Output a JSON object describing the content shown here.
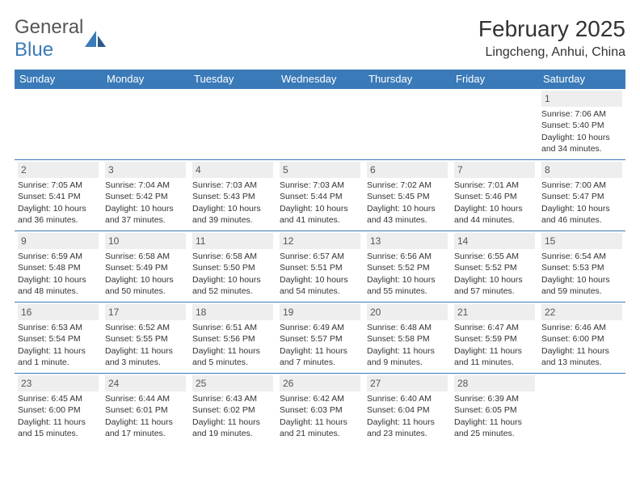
{
  "logo": {
    "word1": "General",
    "word2": "Blue"
  },
  "colors": {
    "header_bg": "#3a7ab8",
    "header_text": "#ffffff",
    "daynum_bg": "#eeeeee",
    "border": "#3a7ab8",
    "body_text": "#333333",
    "logo_gray": "#555555",
    "logo_blue": "#3a7ab8",
    "background": "#ffffff"
  },
  "typography": {
    "month_title_size": 28,
    "location_size": 16,
    "header_cell_size": 13,
    "daynum_size": 12,
    "body_size": 10.5
  },
  "title": "February 2025",
  "location": "Lingcheng, Anhui, China",
  "weekdays": [
    "Sunday",
    "Monday",
    "Tuesday",
    "Wednesday",
    "Thursday",
    "Friday",
    "Saturday"
  ],
  "startOffset": 6,
  "days": [
    {
      "n": "1",
      "sunrise": "Sunrise: 7:06 AM",
      "sunset": "Sunset: 5:40 PM",
      "daylight": "Daylight: 10 hours and 34 minutes."
    },
    {
      "n": "2",
      "sunrise": "Sunrise: 7:05 AM",
      "sunset": "Sunset: 5:41 PM",
      "daylight": "Daylight: 10 hours and 36 minutes."
    },
    {
      "n": "3",
      "sunrise": "Sunrise: 7:04 AM",
      "sunset": "Sunset: 5:42 PM",
      "daylight": "Daylight: 10 hours and 37 minutes."
    },
    {
      "n": "4",
      "sunrise": "Sunrise: 7:03 AM",
      "sunset": "Sunset: 5:43 PM",
      "daylight": "Daylight: 10 hours and 39 minutes."
    },
    {
      "n": "5",
      "sunrise": "Sunrise: 7:03 AM",
      "sunset": "Sunset: 5:44 PM",
      "daylight": "Daylight: 10 hours and 41 minutes."
    },
    {
      "n": "6",
      "sunrise": "Sunrise: 7:02 AM",
      "sunset": "Sunset: 5:45 PM",
      "daylight": "Daylight: 10 hours and 43 minutes."
    },
    {
      "n": "7",
      "sunrise": "Sunrise: 7:01 AM",
      "sunset": "Sunset: 5:46 PM",
      "daylight": "Daylight: 10 hours and 44 minutes."
    },
    {
      "n": "8",
      "sunrise": "Sunrise: 7:00 AM",
      "sunset": "Sunset: 5:47 PM",
      "daylight": "Daylight: 10 hours and 46 minutes."
    },
    {
      "n": "9",
      "sunrise": "Sunrise: 6:59 AM",
      "sunset": "Sunset: 5:48 PM",
      "daylight": "Daylight: 10 hours and 48 minutes."
    },
    {
      "n": "10",
      "sunrise": "Sunrise: 6:58 AM",
      "sunset": "Sunset: 5:49 PM",
      "daylight": "Daylight: 10 hours and 50 minutes."
    },
    {
      "n": "11",
      "sunrise": "Sunrise: 6:58 AM",
      "sunset": "Sunset: 5:50 PM",
      "daylight": "Daylight: 10 hours and 52 minutes."
    },
    {
      "n": "12",
      "sunrise": "Sunrise: 6:57 AM",
      "sunset": "Sunset: 5:51 PM",
      "daylight": "Daylight: 10 hours and 54 minutes."
    },
    {
      "n": "13",
      "sunrise": "Sunrise: 6:56 AM",
      "sunset": "Sunset: 5:52 PM",
      "daylight": "Daylight: 10 hours and 55 minutes."
    },
    {
      "n": "14",
      "sunrise": "Sunrise: 6:55 AM",
      "sunset": "Sunset: 5:52 PM",
      "daylight": "Daylight: 10 hours and 57 minutes."
    },
    {
      "n": "15",
      "sunrise": "Sunrise: 6:54 AM",
      "sunset": "Sunset: 5:53 PM",
      "daylight": "Daylight: 10 hours and 59 minutes."
    },
    {
      "n": "16",
      "sunrise": "Sunrise: 6:53 AM",
      "sunset": "Sunset: 5:54 PM",
      "daylight": "Daylight: 11 hours and 1 minute."
    },
    {
      "n": "17",
      "sunrise": "Sunrise: 6:52 AM",
      "sunset": "Sunset: 5:55 PM",
      "daylight": "Daylight: 11 hours and 3 minutes."
    },
    {
      "n": "18",
      "sunrise": "Sunrise: 6:51 AM",
      "sunset": "Sunset: 5:56 PM",
      "daylight": "Daylight: 11 hours and 5 minutes."
    },
    {
      "n": "19",
      "sunrise": "Sunrise: 6:49 AM",
      "sunset": "Sunset: 5:57 PM",
      "daylight": "Daylight: 11 hours and 7 minutes."
    },
    {
      "n": "20",
      "sunrise": "Sunrise: 6:48 AM",
      "sunset": "Sunset: 5:58 PM",
      "daylight": "Daylight: 11 hours and 9 minutes."
    },
    {
      "n": "21",
      "sunrise": "Sunrise: 6:47 AM",
      "sunset": "Sunset: 5:59 PM",
      "daylight": "Daylight: 11 hours and 11 minutes."
    },
    {
      "n": "22",
      "sunrise": "Sunrise: 6:46 AM",
      "sunset": "Sunset: 6:00 PM",
      "daylight": "Daylight: 11 hours and 13 minutes."
    },
    {
      "n": "23",
      "sunrise": "Sunrise: 6:45 AM",
      "sunset": "Sunset: 6:00 PM",
      "daylight": "Daylight: 11 hours and 15 minutes."
    },
    {
      "n": "24",
      "sunrise": "Sunrise: 6:44 AM",
      "sunset": "Sunset: 6:01 PM",
      "daylight": "Daylight: 11 hours and 17 minutes."
    },
    {
      "n": "25",
      "sunrise": "Sunrise: 6:43 AM",
      "sunset": "Sunset: 6:02 PM",
      "daylight": "Daylight: 11 hours and 19 minutes."
    },
    {
      "n": "26",
      "sunrise": "Sunrise: 6:42 AM",
      "sunset": "Sunset: 6:03 PM",
      "daylight": "Daylight: 11 hours and 21 minutes."
    },
    {
      "n": "27",
      "sunrise": "Sunrise: 6:40 AM",
      "sunset": "Sunset: 6:04 PM",
      "daylight": "Daylight: 11 hours and 23 minutes."
    },
    {
      "n": "28",
      "sunrise": "Sunrise: 6:39 AM",
      "sunset": "Sunset: 6:05 PM",
      "daylight": "Daylight: 11 hours and 25 minutes."
    }
  ]
}
